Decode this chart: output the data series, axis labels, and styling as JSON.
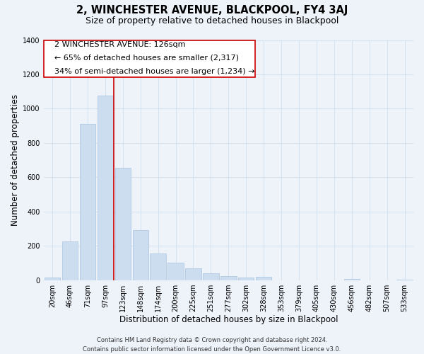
{
  "title": "2, WINCHESTER AVENUE, BLACKPOOL, FY4 3AJ",
  "subtitle": "Size of property relative to detached houses in Blackpool",
  "xlabel": "Distribution of detached houses by size in Blackpool",
  "ylabel": "Number of detached properties",
  "footer_lines": [
    "Contains HM Land Registry data © Crown copyright and database right 2024.",
    "Contains public sector information licensed under the Open Government Licence v3.0."
  ],
  "bar_labels": [
    "20sqm",
    "46sqm",
    "71sqm",
    "97sqm",
    "123sqm",
    "148sqm",
    "174sqm",
    "200sqm",
    "225sqm",
    "251sqm",
    "277sqm",
    "302sqm",
    "328sqm",
    "353sqm",
    "379sqm",
    "405sqm",
    "430sqm",
    "456sqm",
    "482sqm",
    "507sqm",
    "533sqm"
  ],
  "bar_values": [
    15,
    228,
    910,
    1075,
    655,
    293,
    158,
    105,
    70,
    40,
    25,
    18,
    20,
    0,
    0,
    0,
    0,
    10,
    0,
    0,
    5
  ],
  "bar_color": "#ccddf0",
  "bar_edge_color": "#a8c4e0",
  "vline_color": "#cc0000",
  "vline_x": 3.5,
  "annotation_text_line1": "2 WINCHESTER AVENUE: 126sqm",
  "annotation_text_line2": "← 65% of detached houses are smaller (2,317)",
  "annotation_text_line3": "34% of semi-detached houses are larger (1,234) →",
  "annotation_box_edge_color": "#cc0000",
  "annotation_box_face_color": "#ffffff",
  "ylim": [
    0,
    1400
  ],
  "yticks": [
    0,
    200,
    400,
    600,
    800,
    1000,
    1200,
    1400
  ],
  "grid_color": "#d4e2f0",
  "background_color": "#eef2f9",
  "title_fontsize": 10.5,
  "subtitle_fontsize": 9,
  "axis_label_fontsize": 8.5,
  "tick_fontsize": 7,
  "annotation_fontsize": 8,
  "footer_fontsize": 6
}
